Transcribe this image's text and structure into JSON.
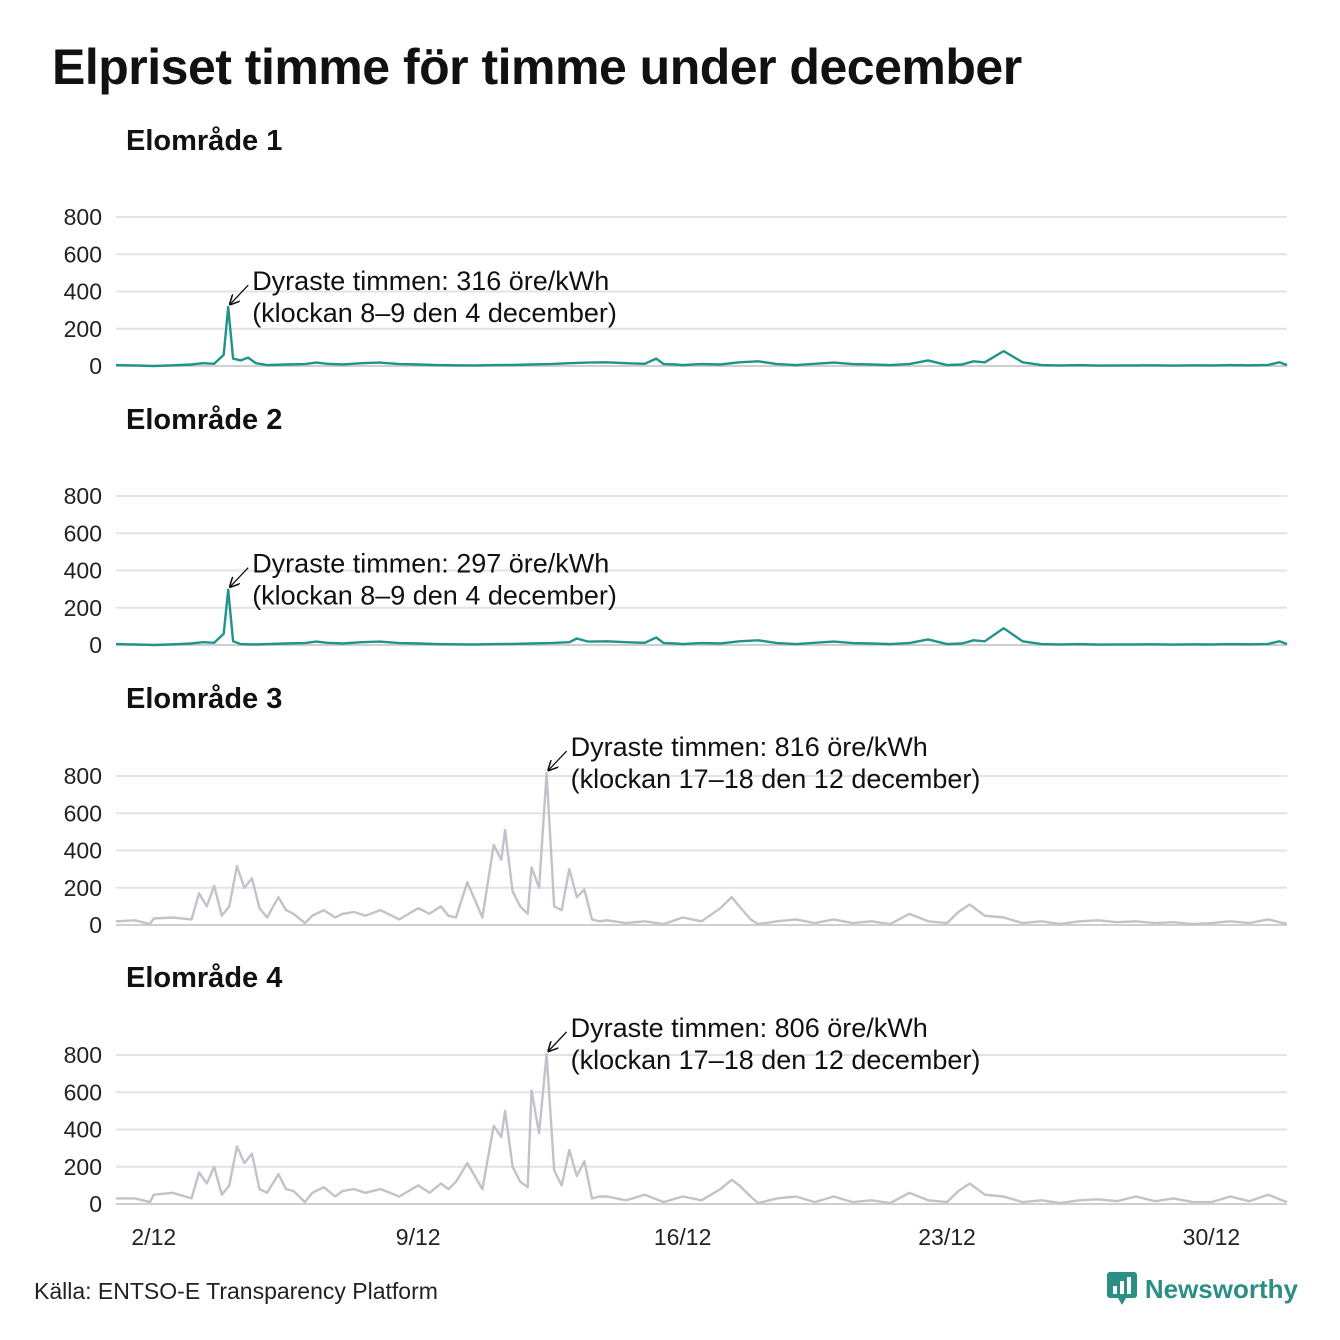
{
  "title": "Elpriset timme för timme under december",
  "source": "Källa: ENTSO-E Transparency Platform",
  "brand": {
    "name": "Newsworthy",
    "icon": "newsworthy-logo-icon",
    "color": "#2b8f86"
  },
  "chart_data": [
    {
      "type": "line",
      "title": "Elområde 1",
      "color": "#1f9488",
      "ylim": [
        0,
        800
      ],
      "yticks": [
        0,
        200,
        400,
        600,
        800
      ],
      "xlim": [
        1.0,
        32.0
      ],
      "xticks": [
        2,
        9,
        16,
        23,
        30
      ],
      "xtick_labels": [
        "2/12",
        "9/12",
        "16/12",
        "23/12",
        "30/12"
      ],
      "grid": true,
      "x": [
        1.0,
        1.5,
        2.0,
        2.5,
        3.0,
        3.3,
        3.6,
        3.85,
        3.97,
        4.1,
        4.3,
        4.5,
        4.7,
        5.0,
        5.5,
        6.0,
        6.3,
        6.6,
        7.0,
        7.5,
        8.0,
        8.5,
        9.0,
        9.5,
        10.0,
        10.5,
        11.0,
        11.5,
        12.0,
        12.5,
        13.0,
        13.5,
        14.0,
        14.5,
        15.0,
        15.3,
        15.5,
        15.8,
        16.0,
        16.5,
        17.0,
        17.5,
        18.0,
        18.5,
        19.0,
        19.5,
        20.0,
        20.5,
        21.0,
        21.5,
        22.0,
        22.5,
        23.0,
        23.4,
        23.7,
        24.0,
        24.5,
        25.0,
        25.5,
        26.0,
        26.5,
        27.0,
        27.5,
        28.0,
        28.5,
        29.0,
        29.5,
        30.0,
        30.5,
        31.0,
        31.5,
        31.8,
        32.0
      ],
      "values": [
        5,
        3,
        0,
        4,
        8,
        15,
        12,
        60,
        316,
        40,
        30,
        45,
        15,
        5,
        8,
        10,
        18,
        12,
        8,
        15,
        18,
        10,
        8,
        5,
        4,
        3,
        5,
        6,
        8,
        10,
        15,
        18,
        20,
        15,
        12,
        40,
        10,
        8,
        5,
        10,
        8,
        20,
        25,
        10,
        5,
        12,
        18,
        10,
        8,
        5,
        10,
        30,
        5,
        8,
        25,
        20,
        80,
        20,
        5,
        3,
        5,
        2,
        3,
        3,
        4,
        2,
        4,
        3,
        5,
        4,
        6,
        20,
        5
      ],
      "annotation": {
        "x": 3.97,
        "y": 316,
        "lines": [
          "Dyraste timmen: 316 öre/kWh",
          "(klockan 8–9 den 4 december)"
        ]
      }
    },
    {
      "type": "line",
      "title": "Elområde 2",
      "color": "#1f9488",
      "ylim": [
        0,
        800
      ],
      "yticks": [
        0,
        200,
        400,
        600,
        800
      ],
      "xlim": [
        1.0,
        32.0
      ],
      "xticks": [
        2,
        9,
        16,
        23,
        30
      ],
      "xtick_labels": [
        "2/12",
        "9/12",
        "16/12",
        "23/12",
        "30/12"
      ],
      "grid": true,
      "x": [
        1.0,
        1.5,
        2.0,
        2.5,
        3.0,
        3.3,
        3.6,
        3.85,
        3.97,
        4.1,
        4.3,
        4.5,
        4.7,
        5.0,
        5.5,
        6.0,
        6.3,
        6.6,
        7.0,
        7.5,
        8.0,
        8.5,
        9.0,
        9.5,
        10.0,
        10.5,
        11.0,
        11.5,
        12.0,
        12.5,
        13.0,
        13.2,
        13.5,
        14.0,
        14.5,
        15.0,
        15.3,
        15.5,
        15.8,
        16.0,
        16.5,
        17.0,
        17.5,
        18.0,
        18.5,
        19.0,
        19.5,
        20.0,
        20.5,
        21.0,
        21.5,
        22.0,
        22.5,
        23.0,
        23.4,
        23.7,
        24.0,
        24.5,
        25.0,
        25.5,
        26.0,
        26.5,
        27.0,
        27.5,
        28.0,
        28.5,
        29.0,
        29.5,
        30.0,
        30.5,
        31.0,
        31.5,
        31.8,
        32.0
      ],
      "values": [
        5,
        3,
        0,
        4,
        8,
        15,
        12,
        60,
        297,
        20,
        5,
        4,
        3,
        5,
        8,
        10,
        18,
        12,
        8,
        15,
        18,
        10,
        8,
        5,
        4,
        3,
        5,
        6,
        8,
        10,
        15,
        35,
        18,
        20,
        15,
        12,
        40,
        10,
        8,
        5,
        10,
        8,
        20,
        25,
        10,
        5,
        12,
        18,
        10,
        8,
        5,
        10,
        30,
        5,
        8,
        25,
        20,
        90,
        20,
        5,
        3,
        5,
        2,
        3,
        3,
        4,
        2,
        4,
        3,
        5,
        4,
        6,
        20,
        5
      ],
      "annotation": {
        "x": 3.97,
        "y": 297,
        "lines": [
          "Dyraste timmen: 297 öre/kWh",
          "(klockan 8–9 den 4 december)"
        ]
      }
    },
    {
      "type": "line",
      "title": "Elområde 3",
      "color": "#c2c2cc",
      "ylim": [
        0,
        800
      ],
      "yticks": [
        0,
        200,
        400,
        600,
        800
      ],
      "xlim": [
        1.0,
        32.0
      ],
      "xticks": [
        2,
        9,
        16,
        23,
        30
      ],
      "xtick_labels": [
        "2/12",
        "9/12",
        "16/12",
        "23/12",
        "30/12"
      ],
      "grid": true,
      "x": [
        1.0,
        1.5,
        1.9,
        2.0,
        2.5,
        3.0,
        3.2,
        3.4,
        3.6,
        3.8,
        4.0,
        4.2,
        4.4,
        4.6,
        4.8,
        5.0,
        5.3,
        5.5,
        5.7,
        6.0,
        6.2,
        6.5,
        6.8,
        7.0,
        7.3,
        7.6,
        8.0,
        8.5,
        9.0,
        9.3,
        9.6,
        9.8,
        10.0,
        10.3,
        10.7,
        11.0,
        11.2,
        11.3,
        11.5,
        11.7,
        11.9,
        12.0,
        12.2,
        12.4,
        12.6,
        12.8,
        13.0,
        13.2,
        13.4,
        13.6,
        13.8,
        14.0,
        14.5,
        15.0,
        15.5,
        16.0,
        16.5,
        17.0,
        17.3,
        17.5,
        17.8,
        18.0,
        18.5,
        19.0,
        19.5,
        20.0,
        20.5,
        21.0,
        21.5,
        22.0,
        22.5,
        23.0,
        23.3,
        23.6,
        24.0,
        24.5,
        25.0,
        25.5,
        26.0,
        26.5,
        27.0,
        27.5,
        28.0,
        28.5,
        29.0,
        29.5,
        30.0,
        30.5,
        31.0,
        31.5,
        31.8,
        32.0
      ],
      "values": [
        20,
        25,
        5,
        35,
        40,
        30,
        170,
        100,
        210,
        50,
        100,
        316,
        200,
        250,
        90,
        40,
        150,
        80,
        60,
        10,
        50,
        80,
        40,
        60,
        70,
        50,
        80,
        30,
        90,
        60,
        100,
        50,
        40,
        230,
        40,
        430,
        350,
        510,
        180,
        100,
        60,
        310,
        200,
        816,
        100,
        80,
        300,
        150,
        190,
        30,
        20,
        25,
        10,
        20,
        5,
        40,
        20,
        90,
        150,
        100,
        30,
        5,
        20,
        30,
        10,
        30,
        10,
        20,
        5,
        60,
        20,
        10,
        70,
        110,
        50,
        40,
        10,
        20,
        5,
        20,
        25,
        15,
        20,
        10,
        15,
        5,
        10,
        20,
        10,
        30,
        15,
        5
      ],
      "annotation": {
        "x": 12.4,
        "y": 816,
        "lines": [
          "Dyraste timmen: 816 öre/kWh",
          "(klockan 17–18 den 12 december)"
        ]
      }
    },
    {
      "type": "line",
      "title": "Elområde 4",
      "color": "#c2c2cc",
      "ylim": [
        0,
        800
      ],
      "yticks": [
        0,
        200,
        400,
        600,
        800
      ],
      "xlim": [
        1.0,
        32.0
      ],
      "xticks": [
        2,
        9,
        16,
        23,
        30
      ],
      "xtick_labels": [
        "2/12",
        "9/12",
        "16/12",
        "23/12",
        "30/12"
      ],
      "grid": true,
      "x": [
        1.0,
        1.5,
        1.9,
        2.0,
        2.5,
        3.0,
        3.2,
        3.4,
        3.6,
        3.8,
        4.0,
        4.2,
        4.4,
        4.6,
        4.8,
        5.0,
        5.3,
        5.5,
        5.7,
        6.0,
        6.2,
        6.5,
        6.8,
        7.0,
        7.3,
        7.6,
        8.0,
        8.5,
        9.0,
        9.3,
        9.6,
        9.8,
        10.0,
        10.3,
        10.7,
        11.0,
        11.2,
        11.3,
        11.5,
        11.7,
        11.9,
        12.0,
        12.2,
        12.4,
        12.6,
        12.8,
        13.0,
        13.2,
        13.4,
        13.6,
        13.8,
        14.0,
        14.5,
        15.0,
        15.5,
        16.0,
        16.5,
        17.0,
        17.3,
        17.5,
        17.8,
        18.0,
        18.5,
        19.0,
        19.5,
        20.0,
        20.5,
        21.0,
        21.5,
        22.0,
        22.5,
        23.0,
        23.3,
        23.6,
        24.0,
        24.5,
        25.0,
        25.5,
        26.0,
        26.5,
        27.0,
        27.5,
        28.0,
        28.5,
        29.0,
        29.5,
        30.0,
        30.5,
        31.0,
        31.5,
        31.8,
        32.0
      ],
      "values": [
        30,
        30,
        10,
        50,
        60,
        30,
        170,
        110,
        200,
        50,
        100,
        310,
        220,
        270,
        80,
        60,
        160,
        80,
        70,
        10,
        60,
        90,
        40,
        70,
        80,
        60,
        80,
        40,
        100,
        60,
        110,
        80,
        120,
        220,
        80,
        420,
        360,
        500,
        200,
        120,
        90,
        610,
        380,
        806,
        180,
        100,
        290,
        150,
        230,
        30,
        40,
        40,
        20,
        50,
        10,
        40,
        20,
        80,
        130,
        100,
        40,
        5,
        30,
        40,
        10,
        40,
        10,
        20,
        5,
        60,
        20,
        10,
        70,
        110,
        50,
        40,
        10,
        20,
        5,
        20,
        25,
        15,
        40,
        15,
        30,
        10,
        10,
        40,
        15,
        50,
        25,
        10
      ],
      "annotation": {
        "x": 12.4,
        "y": 806,
        "lines": [
          "Dyraste timmen: 806 öre/kWh",
          "(klockan 17–18 den 12 december)"
        ]
      }
    }
  ]
}
